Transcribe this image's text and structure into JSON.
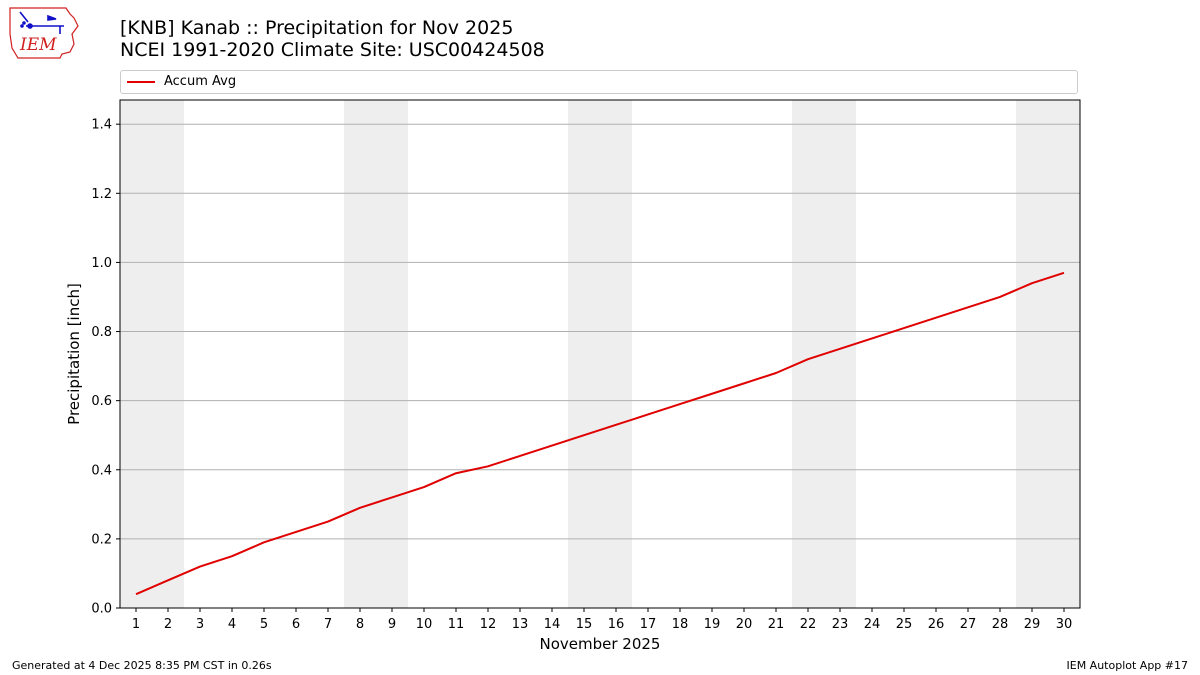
{
  "title_line1": "[KNB] Kanab :: Precipitation for Nov 2025",
  "title_line2": "NCEI 1991-2020 Climate Site: USC00424508",
  "logo_text": "IEM",
  "footer_left": "Generated at 4 Dec 2025 8:35 PM CST in 0.26s",
  "footer_right": "IEM Autoplot App #17",
  "colors": {
    "line": "#e00000",
    "weekend_band": "#eeeeee",
    "grid": "#b0b0b0",
    "logo_red": "#d22020",
    "logo_blue": "#1010c8"
  },
  "chart_data": {
    "type": "line",
    "xlabel": "November 2025",
    "ylabel": "Precipitation [inch]",
    "x": [
      1,
      2,
      3,
      4,
      5,
      6,
      7,
      8,
      9,
      10,
      11,
      12,
      13,
      14,
      15,
      16,
      17,
      18,
      19,
      20,
      21,
      22,
      23,
      24,
      25,
      26,
      27,
      28,
      29,
      30
    ],
    "xlim": [
      0.5,
      30.5
    ],
    "ylim": [
      0,
      1.47
    ],
    "yticks": [
      0.0,
      0.2,
      0.4,
      0.6,
      0.8,
      1.0,
      1.2,
      1.4
    ],
    "grid": "y",
    "legend_position": "top",
    "weekend_bands": [
      [
        0.5,
        2.5
      ],
      [
        7.5,
        9.5
      ],
      [
        14.5,
        16.5
      ],
      [
        21.5,
        23.5
      ],
      [
        28.5,
        30.5
      ]
    ],
    "series": [
      {
        "name": "Accum Avg",
        "color": "#e00000",
        "values": [
          0.04,
          0.08,
          0.12,
          0.15,
          0.19,
          0.22,
          0.25,
          0.29,
          0.32,
          0.35,
          0.39,
          0.41,
          0.44,
          0.47,
          0.5,
          0.53,
          0.56,
          0.59,
          0.62,
          0.65,
          0.68,
          0.72,
          0.75,
          0.78,
          0.81,
          0.84,
          0.87,
          0.9,
          0.94,
          0.97
        ]
      }
    ]
  }
}
